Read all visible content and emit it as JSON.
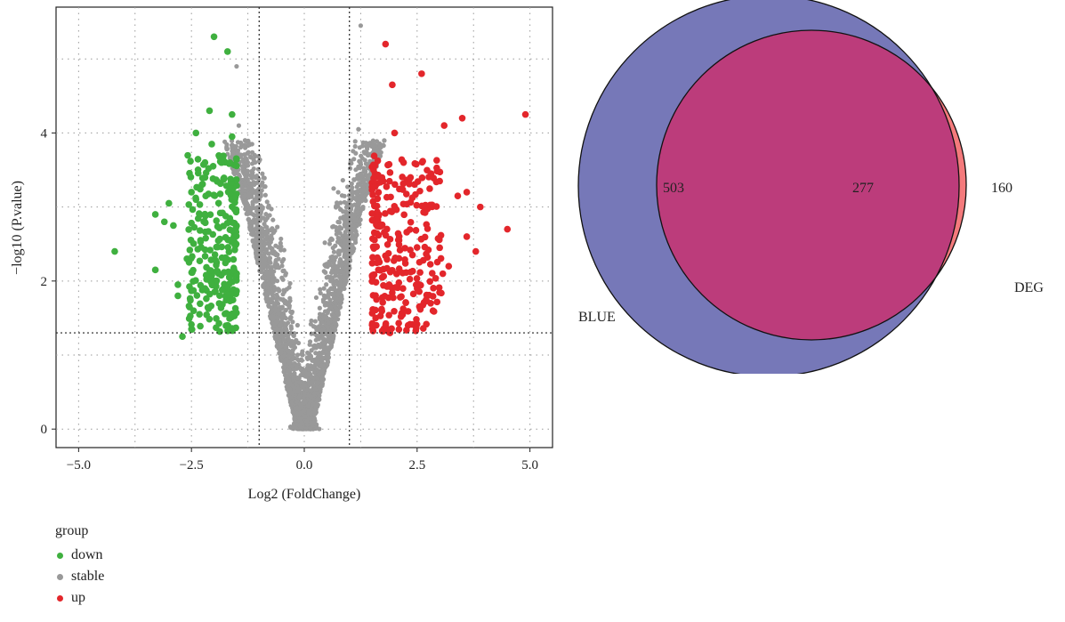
{
  "chart_data": [
    {
      "type": "scatter",
      "xlabel": "Log2 (FoldChange)",
      "ylabel": "−log10 (P.value)",
      "xlim": [
        -5.5,
        5.5
      ],
      "ylim": [
        -0.25,
        5.7
      ],
      "xticks": [
        -5.0,
        -2.5,
        0.0,
        2.5,
        5.0
      ],
      "xtick_labels": [
        "−5.0",
        "−2.5",
        "0.0",
        "2.5",
        "5.0"
      ],
      "yticks": [
        0,
        2,
        4
      ],
      "ytick_labels": [
        "0",
        "2",
        "4"
      ],
      "grid": "dotted",
      "threshold_lines": {
        "x": [
          -1,
          1
        ],
        "y": 1.3
      },
      "legend_title": "group",
      "colors": {
        "down": "#3fb03f",
        "stable": "#999999",
        "up": "#e3262b"
      },
      "series": [
        {
          "name": "down",
          "points": [
            [
              -4.2,
              2.4
            ],
            [
              -3.3,
              2.15
            ],
            [
              -3.3,
              2.9
            ],
            [
              -3.1,
              2.8
            ],
            [
              -3.0,
              3.05
            ],
            [
              -2.9,
              2.75
            ],
            [
              -2.8,
              1.95
            ],
            [
              -2.8,
              1.8
            ],
            [
              -2.6,
              2.3
            ],
            [
              -2.5,
              3.2
            ],
            [
              -2.4,
              4.0
            ],
            [
              -2.4,
              3.1
            ],
            [
              -2.3,
              2.55
            ],
            [
              -2.2,
              3.6
            ],
            [
              -2.1,
              4.3
            ],
            [
              -2.0,
              5.3
            ],
            [
              -1.7,
              5.1
            ],
            [
              -1.6,
              4.25
            ],
            [
              -1.6,
              3.95
            ],
            [
              -2.7,
              1.25
            ],
            [
              -2.5,
              1.35
            ],
            [
              -2.2,
              1.9
            ],
            [
              -1.9,
              2.1
            ],
            [
              -1.7,
              1.4
            ],
            [
              -2.05,
              3.85
            ]
          ]
        },
        {
          "name": "up",
          "points": [
            [
              1.8,
              5.2
            ],
            [
              2.6,
              4.8
            ],
            [
              1.95,
              4.65
            ],
            [
              3.5,
              4.2
            ],
            [
              4.9,
              4.25
            ],
            [
              3.1,
              4.1
            ],
            [
              2.0,
              4.0
            ],
            [
              2.2,
              3.6
            ],
            [
              3.0,
              3.35
            ],
            [
              3.4,
              3.15
            ],
            [
              3.6,
              3.2
            ],
            [
              3.9,
              3.0
            ],
            [
              4.5,
              2.7
            ],
            [
              3.8,
              2.4
            ],
            [
              3.0,
              2.45
            ],
            [
              2.5,
              1.9
            ],
            [
              1.9,
              1.3
            ],
            [
              2.3,
              1.4
            ],
            [
              2.8,
              1.7
            ],
            [
              3.2,
              2.2
            ],
            [
              1.75,
              3.35
            ],
            [
              2.1,
              2.55
            ],
            [
              2.7,
              3.0
            ],
            [
              3.6,
              2.6
            ],
            [
              1.6,
              1.75
            ]
          ]
        },
        {
          "name": "stable",
          "note_values": "dense cloud of grey points between x ≈ -2 and 2, y ≈ 0 to 4"
        }
      ]
    },
    {
      "type": "venn",
      "sets": [
        {
          "name": "BLUE",
          "color": "#7678b8"
        },
        {
          "name": "DEG",
          "color": "#f47a7c"
        }
      ],
      "intersection_color": "#bc3c7b",
      "counts": {
        "BLUE_only": "503",
        "both": "277",
        "DEG_only": "160"
      }
    }
  ]
}
